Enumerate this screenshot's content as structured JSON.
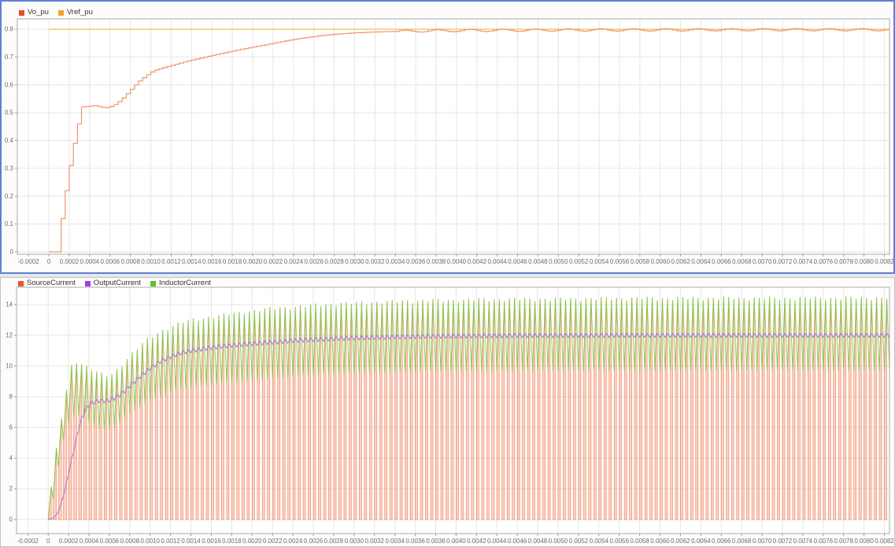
{
  "colors": {
    "page_bg": "#e9e9e9",
    "panel_bg": "#fcfcfc",
    "plot_bg": "#ffffff",
    "grid": "#e6e6e6",
    "frame": "#aaaaaa",
    "tick": "#9b9b9b",
    "tick_text": "#6e6e6e",
    "legend_text": "#333333",
    "selection_border": "#5b80d6"
  },
  "chart_data": [
    {
      "type": "line",
      "title": "",
      "selected": true,
      "grid": true,
      "legend_position": "top-left",
      "legend": [
        {
          "label": "Vo_pu",
          "color": "#e8492b"
        },
        {
          "label": "Vref_pu",
          "color": "#f0a42e"
        }
      ],
      "x_range": [
        -0.00031,
        0.00825
      ],
      "y_range": [
        -0.0085,
        0.837
      ],
      "x_ticks": {
        "start": -0.0002,
        "step": 0.0002,
        "count": 43,
        "labels": [
          "-0.0002",
          "0",
          "0.0002",
          "0.0004",
          "0.0006",
          "0.0008",
          "0.0010",
          "0.0012",
          "0.0014",
          "0.0016",
          "0.0018",
          "0.0020",
          "0.0022",
          "0.0024",
          "0.0026",
          "0.0028",
          "0.0030",
          "0.0032",
          "0.0034",
          "0.0036",
          "0.0038",
          "0.0040",
          "0.0042",
          "0.0044",
          "0.0046",
          "0.0048",
          "0.0050",
          "0.0052",
          "0.0054",
          "0.0056",
          "0.0058",
          "0.0060",
          "0.0062",
          "0.0064",
          "0.0066",
          "0.0068",
          "0.0070",
          "0.0072",
          "0.0074",
          "0.0076",
          "0.0078",
          "0.0080",
          "0.0082"
        ]
      },
      "y_ticks": {
        "start": 0,
        "step": 0.1,
        "count": 9,
        "labels": [
          "0",
          "0.1",
          "0.2",
          "0.3",
          "0.4",
          "0.5",
          "0.6",
          "0.7",
          "0.8"
        ]
      },
      "series": [
        {
          "name": "Vref_pu",
          "kind": "hline",
          "value": 0.8,
          "color": "#f2bb55",
          "width": 1.3,
          "opacity": 0.95
        },
        {
          "name": "Vo_pu",
          "kind": "staircase",
          "color": "#ef8f63",
          "width": 1.2,
          "opacity": 0.95,
          "hold": 4e-05,
          "envelope": [
            [
              0,
              0
            ],
            [
              8e-05,
              0
            ],
            [
              8.5e-05,
              0.04
            ],
            [
              0.00011,
              0.04
            ],
            [
              0.000115,
              0.12
            ],
            [
              0.00014,
              0.12
            ],
            [
              0.000145,
              0.22
            ],
            [
              0.00018,
              0.22
            ],
            [
              0.000185,
              0.31
            ],
            [
              0.00022,
              0.31
            ],
            [
              0.000225,
              0.39
            ],
            [
              0.00025,
              0.39
            ],
            [
              0.000255,
              0.46
            ],
            [
              0.00029,
              0.46
            ],
            [
              0.000295,
              0.52
            ],
            [
              0.00045,
              0.525
            ],
            [
              0.00055,
              0.517
            ],
            [
              0.00062,
              0.524
            ],
            [
              0.0007,
              0.545
            ],
            [
              0.00079,
              0.58
            ],
            [
              0.00086,
              0.608
            ],
            [
              0.00094,
              0.632
            ],
            [
              0.00102,
              0.651
            ],
            [
              0.0011,
              0.66
            ],
            [
              0.00118,
              0.668
            ],
            [
              0.00128,
              0.678
            ],
            [
              0.00138,
              0.688
            ],
            [
              0.00148,
              0.696
            ],
            [
              0.00161,
              0.707
            ],
            [
              0.00174,
              0.717
            ],
            [
              0.00187,
              0.727
            ],
            [
              0.002,
              0.736
            ],
            [
              0.00213,
              0.745
            ],
            [
              0.00226,
              0.754
            ],
            [
              0.00239,
              0.763
            ],
            [
              0.00252,
              0.77
            ],
            [
              0.00266,
              0.777
            ],
            [
              0.0028,
              0.782
            ],
            [
              0.003,
              0.787
            ],
            [
              0.0032,
              0.79
            ],
            [
              0.0034,
              0.792
            ],
            [
              0.0037,
              0.794
            ],
            [
              0.004,
              0.795
            ],
            [
              0.0045,
              0.796
            ],
            [
              0.005,
              0.797
            ],
            [
              0.006,
              0.7975
            ],
            [
              0.007,
              0.798
            ],
            [
              0.0084,
              0.798
            ]
          ],
          "ripple": {
            "start": 0.0034,
            "amp": 0.0042,
            "wavelength": 0.00032
          }
        }
      ]
    },
    {
      "type": "line",
      "title": "",
      "selected": false,
      "grid": true,
      "legend_position": "top-left",
      "legend": [
        {
          "label": "SourceCurrent",
          "color": "#ed552e"
        },
        {
          "label": "OutputCurrent",
          "color": "#a33be8"
        },
        {
          "label": "InductorCurrent",
          "color": "#5ec22b"
        }
      ],
      "x_range": [
        -0.00031,
        0.00825
      ],
      "y_range": [
        -0.92,
        15.13
      ],
      "x_ticks": {
        "start": -0.0002,
        "step": 0.0002,
        "count": 43,
        "labels": [
          "-0.0002",
          "0",
          "0.0002",
          "0.0004",
          "0.0006",
          "0.0008",
          "0.0010",
          "0.0012",
          "0.0014",
          "0.0016",
          "0.0018",
          "0.0020",
          "0.0022",
          "0.0024",
          "0.0026",
          "0.0028",
          "0.0030",
          "0.0032",
          "0.0034",
          "0.0036",
          "0.0038",
          "0.0040",
          "0.0042",
          "0.0044",
          "0.0046",
          "0.0048",
          "0.0050",
          "0.0052",
          "0.0054",
          "0.0056",
          "0.0058",
          "0.0060",
          "0.0062",
          "0.0064",
          "0.0066",
          "0.0068",
          "0.0070",
          "0.0072",
          "0.0074",
          "0.0076",
          "0.0078",
          "0.0080",
          "0.0082"
        ]
      },
      "y_ticks": {
        "start": 0,
        "step": 2,
        "count": 8,
        "labels": [
          "0",
          "2",
          "4",
          "6",
          "8",
          "10",
          "12",
          "14"
        ]
      },
      "switching": {
        "period": 5e-05,
        "duty_envelope": [
          [
            0,
            0.62
          ],
          [
            0.0002,
            0.6
          ],
          [
            0.00035,
            0.55
          ],
          [
            0.0005,
            0.5
          ],
          [
            0.0008,
            0.48
          ],
          [
            0.0012,
            0.47
          ],
          [
            0.0086,
            0.47
          ]
        ],
        "peak_envelope": [
          [
            3e-05,
            2.1
          ],
          [
            8e-05,
            4.5
          ],
          [
            0.00013,
            6.6
          ],
          [
            0.00018,
            8.4
          ],
          [
            0.00023,
            10.0
          ],
          [
            0.00028,
            10.3
          ],
          [
            0.00033,
            10.15
          ],
          [
            0.0004,
            9.9
          ],
          [
            0.0005,
            9.5
          ],
          [
            0.00056,
            9.35
          ],
          [
            0.00062,
            9.45
          ],
          [
            0.0007,
            9.9
          ],
          [
            0.00075,
            10.3
          ],
          [
            0.0008,
            10.7
          ],
          [
            0.00085,
            11.0
          ],
          [
            0.0009,
            11.3
          ],
          [
            0.00095,
            11.6
          ],
          [
            0.001,
            11.85
          ],
          [
            0.0011,
            12.25
          ],
          [
            0.0012,
            12.55
          ],
          [
            0.0013,
            12.8
          ],
          [
            0.0014,
            13.0
          ],
          [
            0.0015,
            13.1
          ],
          [
            0.0016,
            13.2
          ],
          [
            0.0017,
            13.3
          ],
          [
            0.0018,
            13.4
          ],
          [
            0.0019,
            13.5
          ],
          [
            0.002,
            13.6
          ],
          [
            0.0022,
            13.75
          ],
          [
            0.0024,
            13.85
          ],
          [
            0.0026,
            13.95
          ],
          [
            0.0028,
            14.05
          ],
          [
            0.003,
            14.1
          ],
          [
            0.0034,
            14.2
          ],
          [
            0.0038,
            14.28
          ],
          [
            0.0045,
            14.35
          ],
          [
            0.0055,
            14.4
          ],
          [
            0.0065,
            14.42
          ],
          [
            0.0075,
            14.42
          ],
          [
            0.0086,
            14.45
          ]
        ],
        "trough_envelope": [
          [
            0,
            0
          ],
          [
            5e-05,
            1.3
          ],
          [
            0.0001,
            3.4
          ],
          [
            0.00015,
            5.2
          ],
          [
            0.0002,
            6.3
          ],
          [
            0.00025,
            6.7
          ],
          [
            0.0003,
            6.7
          ],
          [
            0.0004,
            6.3
          ],
          [
            0.0005,
            5.9
          ],
          [
            0.00057,
            5.75
          ],
          [
            0.00065,
            6.0
          ],
          [
            0.00072,
            6.4
          ],
          [
            0.0008,
            6.9
          ],
          [
            0.0009,
            7.35
          ],
          [
            0.001,
            7.7
          ],
          [
            0.0011,
            8.0
          ],
          [
            0.0012,
            8.25
          ],
          [
            0.0013,
            8.45
          ],
          [
            0.0014,
            8.55
          ],
          [
            0.0015,
            8.65
          ],
          [
            0.0016,
            8.75
          ],
          [
            0.0017,
            8.8
          ],
          [
            0.0018,
            8.9
          ],
          [
            0.002,
            9.05
          ],
          [
            0.0022,
            9.2
          ],
          [
            0.0024,
            9.3
          ],
          [
            0.0026,
            9.4
          ],
          [
            0.0028,
            9.45
          ],
          [
            0.003,
            9.5
          ],
          [
            0.0034,
            9.6
          ],
          [
            0.004,
            9.65
          ],
          [
            0.005,
            9.7
          ],
          [
            0.006,
            9.7
          ],
          [
            0.007,
            9.72
          ],
          [
            0.0086,
            9.72
          ]
        ],
        "peak_jitter": 0.1,
        "trough_jitter": 0.05
      },
      "series": [
        {
          "name": "SourceCurrent",
          "kind": "pulses",
          "color": "#ee6a3a",
          "width": 0.7,
          "stroke_opacity": 0.7,
          "fill_opacity": 0.3
        },
        {
          "name": "InductorCurrent",
          "kind": "sawtooth",
          "color": "#7dc63e",
          "width": 1.0,
          "opacity": 0.85
        },
        {
          "name": "OutputCurrent",
          "kind": "ripple_line",
          "color": "#b279d9",
          "width": 1.2,
          "opacity": 0.95,
          "envelope": [
            [
              0,
              0
            ],
            [
              6e-05,
              0.1
            ],
            [
              0.0001,
              0.5
            ],
            [
              0.00014,
              1.3
            ],
            [
              0.00018,
              2.4
            ],
            [
              0.00022,
              3.6
            ],
            [
              0.00026,
              4.8
            ],
            [
              0.0003,
              5.9
            ],
            [
              0.00034,
              6.8
            ],
            [
              0.00038,
              7.3
            ],
            [
              0.00043,
              7.6
            ],
            [
              0.0005,
              7.75
            ],
            [
              0.00058,
              7.72
            ],
            [
              0.00065,
              7.9
            ],
            [
              0.00072,
              8.2
            ],
            [
              0.0008,
              8.7
            ],
            [
              0.0009,
              9.3
            ],
            [
              0.001,
              9.85
            ],
            [
              0.0011,
              10.3
            ],
            [
              0.0012,
              10.6
            ],
            [
              0.0013,
              10.85
            ],
            [
              0.0014,
              11.0
            ],
            [
              0.0015,
              11.1
            ],
            [
              0.0016,
              11.2
            ],
            [
              0.0018,
              11.35
            ],
            [
              0.002,
              11.45
            ],
            [
              0.0022,
              11.55
            ],
            [
              0.0024,
              11.65
            ],
            [
              0.0026,
              11.72
            ],
            [
              0.0028,
              11.78
            ],
            [
              0.003,
              11.83
            ],
            [
              0.0034,
              11.9
            ],
            [
              0.0038,
              11.94
            ],
            [
              0.0045,
              11.98
            ],
            [
              0.0055,
              12.0
            ],
            [
              0.007,
              12.0
            ],
            [
              0.0084,
              12.0
            ]
          ],
          "ripple_amp": 0.13
        }
      ]
    }
  ]
}
